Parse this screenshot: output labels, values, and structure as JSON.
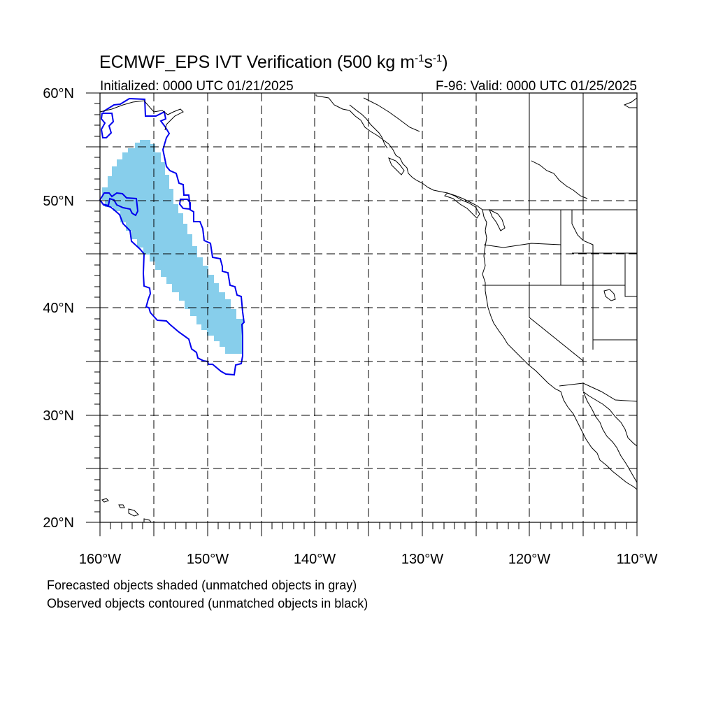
{
  "title": {
    "main": "ECMWF_EPS IVT Verification (500 kg m",
    "exp1": "-1",
    "mid": "s",
    "exp2": "-1",
    "end": ")"
  },
  "initialized": "Initialized: 0000 UTC 01/21/2025",
  "valid": "F-96: Valid: 0000 UTC 01/25/2025",
  "lat_labels": [
    "60°N",
    "50°N",
    "40°N",
    "30°N",
    "20°N"
  ],
  "lon_labels": [
    "160°W",
    "150°W",
    "140°W",
    "130°W",
    "120°W",
    "110°W"
  ],
  "footnotes": [
    "Forecasted objects shaded (unmatched objects in gray)",
    "Observed objects contoured (unmatched objects in black)"
  ],
  "map_extent": {
    "lon_min": -160,
    "lon_max": -110,
    "lat_min": 20,
    "lat_max": 60
  },
  "colors": {
    "forecast_fill": "#87ceeb",
    "observed_contour": "#0000ee",
    "coastline": "#000000",
    "grid": "#000000"
  }
}
